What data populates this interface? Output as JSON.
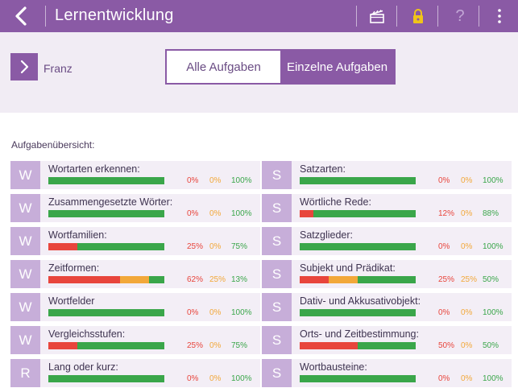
{
  "header": {
    "title": "Lernentwicklung",
    "help_symbol": "?",
    "icons": [
      "back-chevron-icon",
      "clapperboard-icon",
      "lock-icon",
      "help-icon",
      "more-vertical-icon"
    ],
    "bg_color": "#8a5aa5",
    "lock_color": "#f0c419"
  },
  "user": {
    "name": "Franz"
  },
  "tabs": {
    "all": "Alle Aufgaben",
    "single": "Einzelne Aufgaben",
    "active": "single"
  },
  "section_label": "Aufgabenübersicht:",
  "colors": {
    "red": "#e8453c",
    "orange": "#f2a83a",
    "green": "#3aa64a",
    "badge": "#c7aed9"
  },
  "left_tasks": [
    {
      "letter": "W",
      "name": "Wortarten erkennen:",
      "red": 0,
      "orange": 0,
      "green": 100,
      "red_label": "0%",
      "orange_label": "0%",
      "green_label": "100%"
    },
    {
      "letter": "W",
      "name": "Zusammengesetzte Wörter:",
      "red": 0,
      "orange": 0,
      "green": 100,
      "red_label": "0%",
      "orange_label": "0%",
      "green_label": "100%"
    },
    {
      "letter": "W",
      "name": "Wortfamilien:",
      "red": 25,
      "orange": 0,
      "green": 75,
      "red_label": "25%",
      "orange_label": "0%",
      "green_label": "75%"
    },
    {
      "letter": "W",
      "name": "Zeitformen:",
      "red": 62,
      "orange": 25,
      "green": 13,
      "red_label": "62%",
      "orange_label": "25%",
      "green_label": "13%"
    },
    {
      "letter": "W",
      "name": "Wortfelder",
      "red": 0,
      "orange": 0,
      "green": 100,
      "red_label": "0%",
      "orange_label": "0%",
      "green_label": "100%"
    },
    {
      "letter": "W",
      "name": "Vergleichsstufen:",
      "red": 25,
      "orange": 0,
      "green": 75,
      "red_label": "25%",
      "orange_label": "0%",
      "green_label": "75%"
    },
    {
      "letter": "R",
      "name": "Lang oder kurz:",
      "red": 0,
      "orange": 0,
      "green": 100,
      "red_label": "0%",
      "orange_label": "0%",
      "green_label": "100%"
    }
  ],
  "right_tasks": [
    {
      "letter": "S",
      "name": "Satzarten:",
      "red": 0,
      "orange": 0,
      "green": 100,
      "red_label": "0%",
      "orange_label": "0%",
      "green_label": "100%"
    },
    {
      "letter": "S",
      "name": "Wörtliche Rede:",
      "red": 12,
      "orange": 0,
      "green": 88,
      "red_label": "12%",
      "orange_label": "0%",
      "green_label": "88%"
    },
    {
      "letter": "S",
      "name": "Satzglieder:",
      "red": 0,
      "orange": 0,
      "green": 100,
      "red_label": "0%",
      "orange_label": "0%",
      "green_label": "100%"
    },
    {
      "letter": "S",
      "name": "Subjekt und Prädikat:",
      "red": 25,
      "orange": 25,
      "green": 50,
      "red_label": "25%",
      "orange_label": "25%",
      "green_label": "50%"
    },
    {
      "letter": "S",
      "name": "Dativ- und Akkusativobjekt:",
      "red": 0,
      "orange": 0,
      "green": 100,
      "red_label": "0%",
      "orange_label": "0%",
      "green_label": "100%"
    },
    {
      "letter": "S",
      "name": "Orts- und Zeitbestimmung:",
      "red": 50,
      "orange": 0,
      "green": 50,
      "red_label": "50%",
      "orange_label": "0%",
      "green_label": "50%"
    },
    {
      "letter": "S",
      "name": "Wortbausteine:",
      "red": 0,
      "orange": 0,
      "green": 100,
      "red_label": "0%",
      "orange_label": "0%",
      "green_label": "100%"
    }
  ]
}
